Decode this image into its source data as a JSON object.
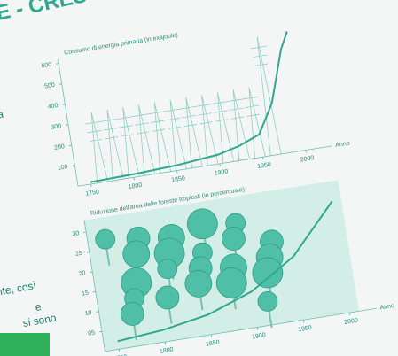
{
  "page_title": "E - CRES",
  "page_text": [
    "ta",
    "nte, così",
    "e",
    "si sono"
  ],
  "chart_data": [
    {
      "type": "line",
      "title": "Consumo di energia primaria (in exajoule)",
      "x_label": "Anno",
      "x": [
        1750,
        1800,
        1850,
        1900,
        1925,
        1950,
        1970,
        1990,
        2000
      ],
      "values": [
        10,
        15,
        25,
        45,
        70,
        110,
        250,
        500,
        580
      ],
      "color": "#2fa88f",
      "xlim": [
        1735,
        2010
      ],
      "xticks": [
        1750,
        1800,
        1850,
        1900,
        1950,
        2000
      ],
      "ylim": [
        0,
        620
      ],
      "yticks": [
        100,
        200,
        300,
        400,
        500,
        600
      ]
    },
    {
      "type": "line",
      "title": "Riduzione dell'area delle foreste tropicali (in percentuale)",
      "x_label": "Anno",
      "x": [
        1750,
        1800,
        1850,
        1900,
        1950,
        2000
      ],
      "values": [
        2,
        3,
        5,
        9,
        16,
        28
      ],
      "color": "#2fa88f",
      "xlim": [
        1735,
        2010
      ],
      "xticks": [
        1750,
        1800,
        1850,
        1900,
        1950,
        2000
      ],
      "ylim": [
        0,
        33
      ],
      "yticks": [
        {
          "value": 5,
          "label": "05"
        },
        10,
        15,
        20,
        25,
        30
      ]
    }
  ]
}
